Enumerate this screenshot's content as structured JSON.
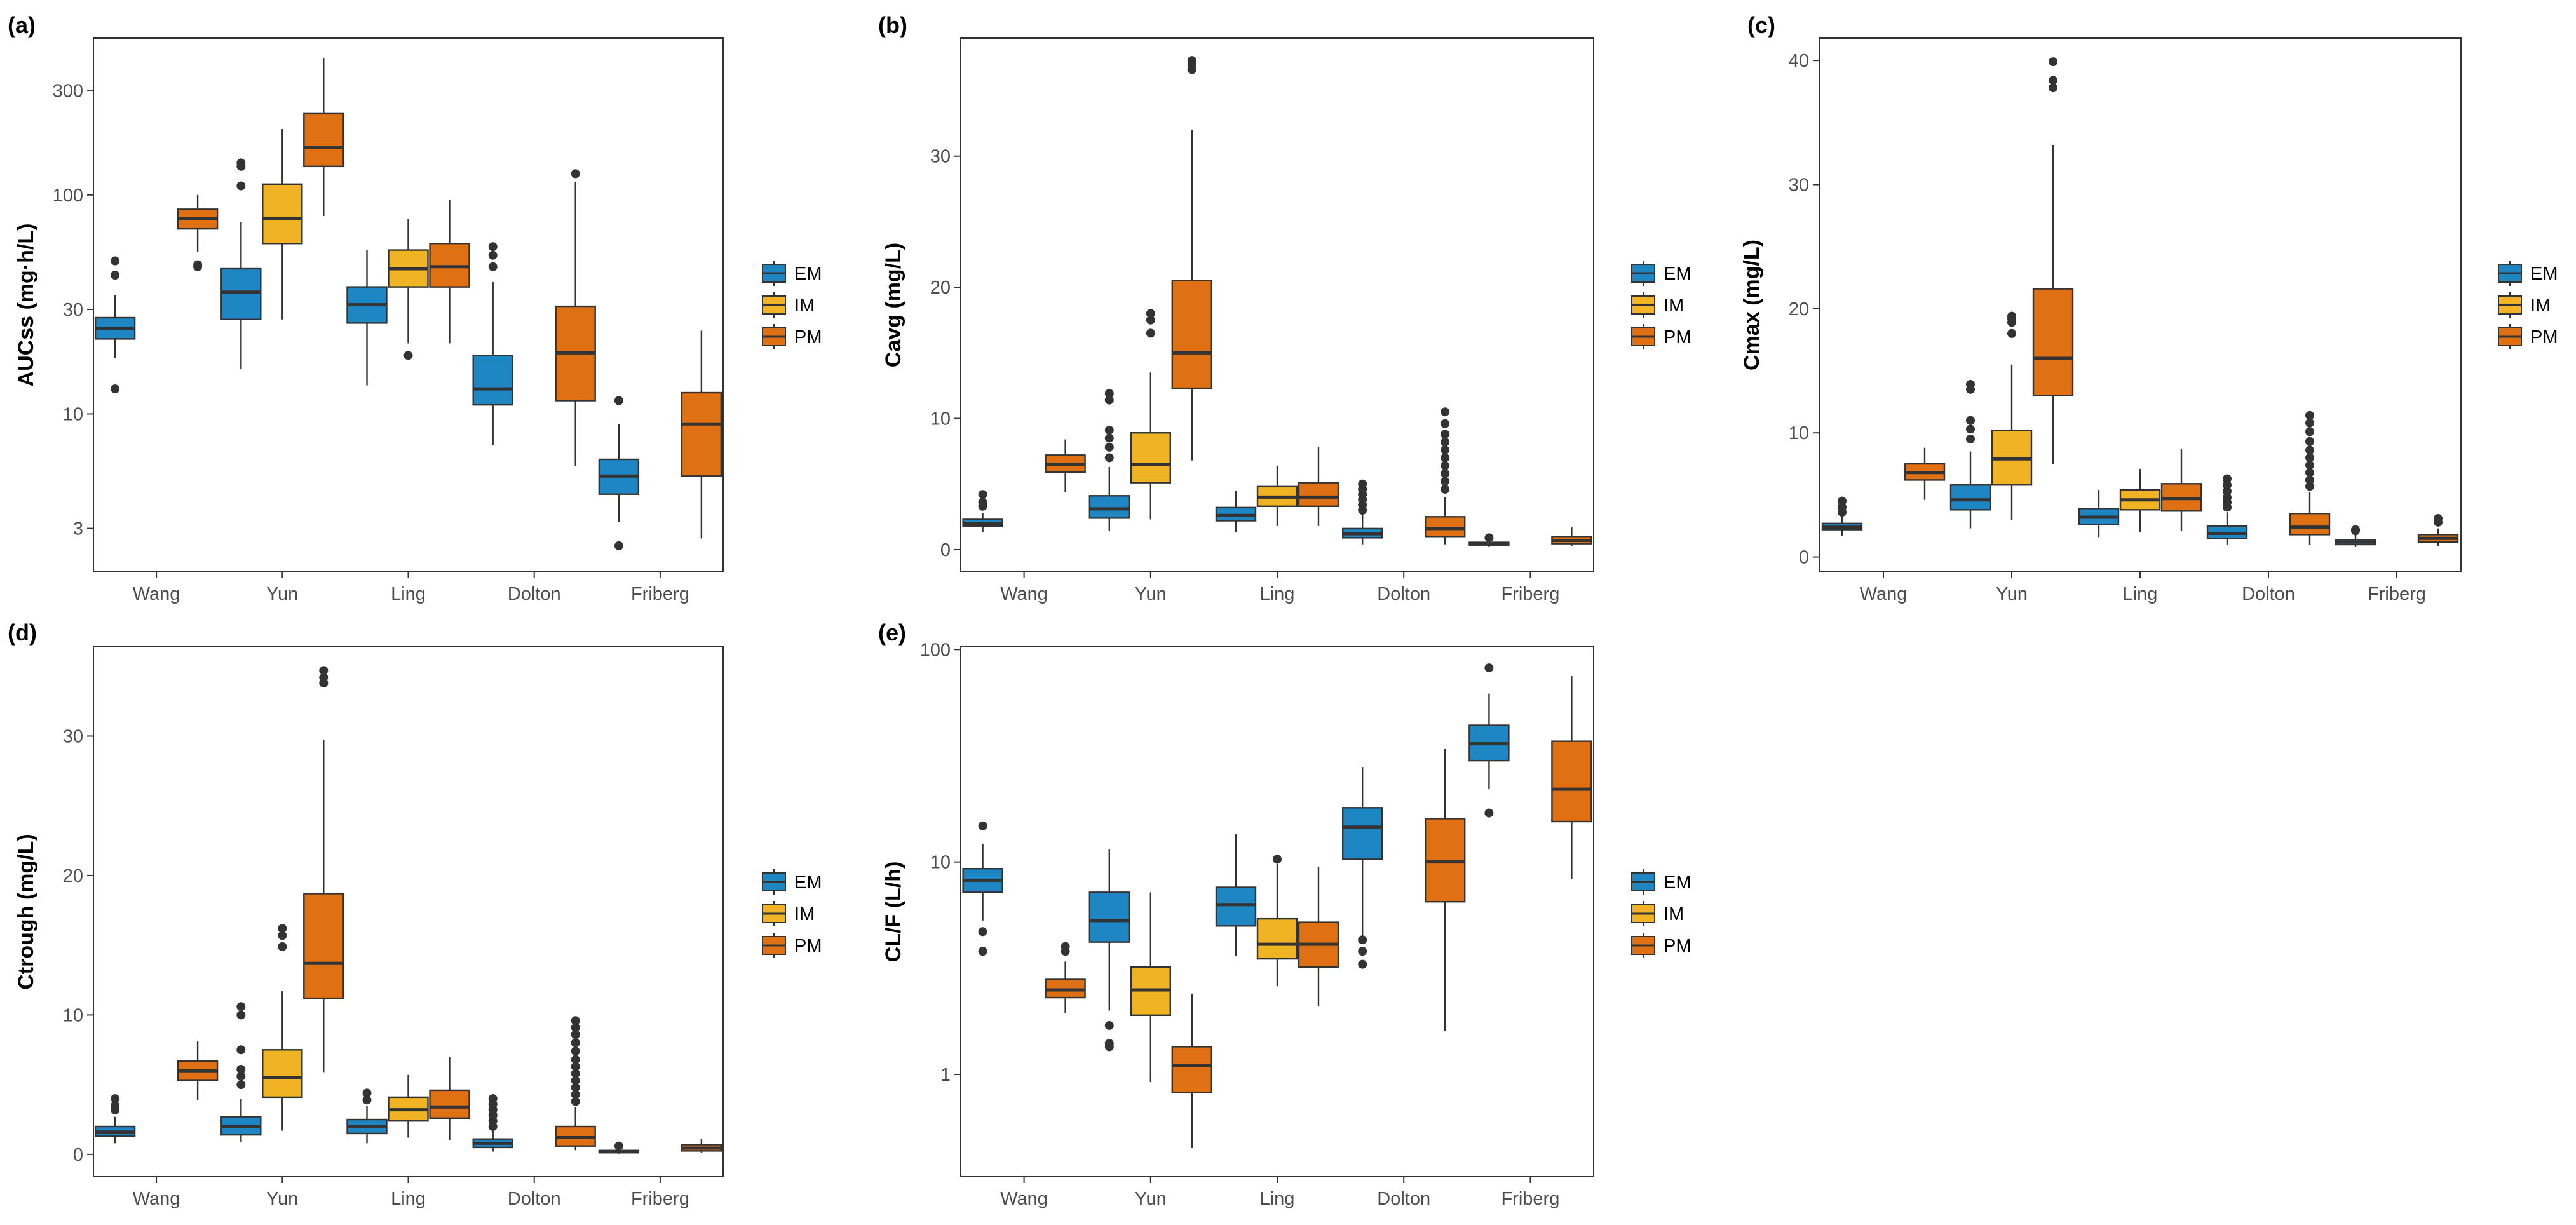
{
  "colors": {
    "EM": "#1f86c4",
    "IM": "#f0b323",
    "PM": "#e07014",
    "outlier": "#333333",
    "line": "#333333"
  },
  "legend": [
    "EM",
    "IM",
    "PM"
  ],
  "chart_data": [
    {
      "id": "a",
      "panel_label": "(a)",
      "type": "box",
      "ylabel": "AUCss (mg·h/L)",
      "scale": "log",
      "ylim": [
        1.9,
        520
      ],
      "yticks": [
        3,
        10,
        30,
        100,
        300
      ],
      "categories": [
        "Wang",
        "Yun",
        "Ling",
        "Dolton",
        "Friberg"
      ],
      "series": [
        {
          "name": "EM",
          "boxes": [
            {
              "min": 18,
              "q1": 22,
              "median": 24.5,
              "q3": 27.5,
              "max": 35,
              "outliers": [
                50,
                43,
                13
              ]
            },
            {
              "min": 16,
              "q1": 27,
              "median": 36,
              "q3": 46,
              "max": 75,
              "outliers": [
                110,
                135,
                140
              ]
            },
            {
              "min": 13.5,
              "q1": 26,
              "median": 31.5,
              "q3": 38,
              "max": 56,
              "outliers": []
            },
            {
              "min": 7.2,
              "q1": 11,
              "median": 13,
              "q3": 18.5,
              "max": 40,
              "outliers": [
                47,
                53,
                58
              ]
            },
            {
              "min": 3.2,
              "q1": 4.3,
              "median": 5.2,
              "q3": 6.2,
              "max": 9,
              "outliers": [
                11.5,
                2.5
              ]
            }
          ]
        },
        {
          "name": "IM",
          "boxes": [
            null,
            {
              "min": 27,
              "q1": 60,
              "median": 78,
              "q3": 112,
              "max": 200,
              "outliers": []
            },
            {
              "min": 21,
              "q1": 38,
              "median": 46,
              "q3": 56,
              "max": 78,
              "outliers": [
                18.5
              ]
            },
            null,
            null
          ]
        },
        {
          "name": "PM",
          "boxes": [
            {
              "min": 55,
              "q1": 70,
              "median": 78,
              "q3": 86,
              "max": 100,
              "outliers": [
                48,
                47
              ]
            },
            {
              "min": 80,
              "q1": 135,
              "median": 165,
              "q3": 235,
              "max": 420,
              "outliers": []
            },
            {
              "min": 21,
              "q1": 38,
              "median": 47,
              "q3": 60,
              "max": 95,
              "outliers": []
            },
            {
              "min": 5.8,
              "q1": 11.5,
              "median": 19,
              "q3": 31,
              "max": 115,
              "outliers": [
                125
              ]
            },
            {
              "min": 2.7,
              "q1": 5.2,
              "median": 9,
              "q3": 12.5,
              "max": 24,
              "outliers": []
            }
          ]
        }
      ]
    },
    {
      "id": "b",
      "panel_label": "(b)",
      "type": "box",
      "ylabel": "Cavg (mg/L)",
      "scale": "linear",
      "ylim": [
        -1.7,
        39
      ],
      "yticks": [
        0,
        10,
        20,
        30
      ],
      "categories": [
        "Wang",
        "Yun",
        "Ling",
        "Dolton",
        "Friberg"
      ],
      "series": [
        {
          "name": "EM",
          "boxes": [
            {
              "min": 1.3,
              "q1": 1.8,
              "median": 2.0,
              "q3": 2.3,
              "max": 2.8,
              "outliers": [
                3.3,
                3.6,
                4.2
              ]
            },
            {
              "min": 1.4,
              "q1": 2.4,
              "median": 3.1,
              "q3": 4.1,
              "max": 6.3,
              "outliers": [
                7,
                7.8,
                8.5,
                9.1,
                11.4,
                11.9
              ]
            },
            {
              "min": 1.3,
              "q1": 2.2,
              "median": 2.6,
              "q3": 3.2,
              "max": 4.5,
              "outliers": []
            },
            {
              "min": 0.4,
              "q1": 0.9,
              "median": 1.2,
              "q3": 1.6,
              "max": 2.7,
              "outliers": [
                3.0,
                3.4,
                3.8,
                4.2,
                4.6,
                5.0
              ]
            },
            {
              "min": 0.2,
              "q1": 0.35,
              "median": 0.42,
              "q3": 0.55,
              "max": 0.8,
              "outliers": [
                0.9
              ]
            }
          ]
        },
        {
          "name": "IM",
          "boxes": [
            null,
            {
              "min": 2.3,
              "q1": 5.1,
              "median": 6.5,
              "q3": 8.9,
              "max": 13.5,
              "outliers": [
                16.5,
                17.5,
                18.0
              ]
            },
            {
              "min": 1.8,
              "q1": 3.3,
              "median": 4.0,
              "q3": 4.8,
              "max": 6.4,
              "outliers": []
            },
            null,
            null
          ]
        },
        {
          "name": "PM",
          "boxes": [
            {
              "min": 4.4,
              "q1": 5.9,
              "median": 6.5,
              "q3": 7.2,
              "max": 8.4,
              "outliers": []
            },
            {
              "min": 6.8,
              "q1": 12.3,
              "median": 15.0,
              "q3": 20.5,
              "max": 32.0,
              "outliers": [
                36.6,
                37.0,
                37.3
              ]
            },
            {
              "min": 1.8,
              "q1": 3.3,
              "median": 4.0,
              "q3": 5.1,
              "max": 7.8,
              "outliers": []
            },
            {
              "min": 0.4,
              "q1": 1.0,
              "median": 1.6,
              "q3": 2.5,
              "max": 4.0,
              "outliers": [
                4.6,
                5.2,
                5.8,
                6.4,
                7.0,
                7.6,
                8.2,
                8.8,
                9.6,
                10.5
              ]
            },
            {
              "min": 0.25,
              "q1": 0.45,
              "median": 0.7,
              "q3": 1.0,
              "max": 1.7,
              "outliers": []
            }
          ]
        }
      ]
    },
    {
      "id": "c",
      "panel_label": "(c)",
      "type": "box",
      "ylabel": "Cmax (mg/L)",
      "scale": "linear",
      "ylim": [
        -1.2,
        41.8
      ],
      "yticks": [
        0,
        10,
        20,
        30,
        40
      ],
      "categories": [
        "Wang",
        "Yun",
        "Ling",
        "Dolton",
        "Friberg"
      ],
      "series": [
        {
          "name": "EM",
          "boxes": [
            {
              "min": 1.7,
              "q1": 2.2,
              "median": 2.4,
              "q3": 2.7,
              "max": 3.2,
              "outliers": [
                3.6,
                4.0,
                4.5
              ]
            },
            {
              "min": 2.3,
              "q1": 3.8,
              "median": 4.6,
              "q3": 5.8,
              "max": 8.5,
              "outliers": [
                9.5,
                10.3,
                11.0,
                13.5,
                13.9
              ]
            },
            {
              "min": 1.6,
              "q1": 2.6,
              "median": 3.2,
              "q3": 3.9,
              "max": 5.4,
              "outliers": []
            },
            {
              "min": 1.0,
              "q1": 1.5,
              "median": 1.9,
              "q3": 2.5,
              "max": 3.6,
              "outliers": [
                4.0,
                4.4,
                4.8,
                5.3,
                5.8,
                6.3
              ]
            },
            {
              "min": 0.8,
              "q1": 1.0,
              "median": 1.2,
              "q3": 1.4,
              "max": 1.8,
              "outliers": [
                2.1,
                2.2
              ]
            }
          ]
        },
        {
          "name": "IM",
          "boxes": [
            null,
            {
              "min": 3.0,
              "q1": 5.8,
              "median": 7.9,
              "q3": 10.2,
              "max": 15.5,
              "outliers": [
                18.0,
                18.9,
                19.2,
                19.4
              ]
            },
            {
              "min": 2.0,
              "q1": 3.8,
              "median": 4.6,
              "q3": 5.4,
              "max": 7.1,
              "outliers": []
            },
            null,
            null
          ]
        },
        {
          "name": "PM",
          "boxes": [
            {
              "min": 4.6,
              "q1": 6.2,
              "median": 6.8,
              "q3": 7.5,
              "max": 8.8,
              "outliers": []
            },
            {
              "min": 7.5,
              "q1": 13.0,
              "median": 16.0,
              "q3": 21.6,
              "max": 33.2,
              "outliers": [
                37.8,
                38.4,
                39.9
              ]
            },
            {
              "min": 2.1,
              "q1": 3.7,
              "median": 4.7,
              "q3": 5.9,
              "max": 8.7,
              "outliers": []
            },
            {
              "min": 1.0,
              "q1": 1.8,
              "median": 2.4,
              "q3": 3.5,
              "max": 5.2,
              "outliers": [
                5.7,
                6.2,
                6.8,
                7.4,
                8.0,
                8.6,
                9.3,
                10.1,
                10.8,
                11.4
              ]
            },
            {
              "min": 0.9,
              "q1": 1.2,
              "median": 1.5,
              "q3": 1.8,
              "max": 2.3,
              "outliers": [
                2.8,
                3.1
              ]
            }
          ]
        }
      ]
    },
    {
      "id": "d",
      "panel_label": "(d)",
      "type": "box",
      "ylabel": "Ctrough (mg/L)",
      "scale": "linear",
      "ylim": [
        -1.6,
        36.4
      ],
      "yticks": [
        0,
        10,
        20,
        30
      ],
      "categories": [
        "Wang",
        "Yun",
        "Ling",
        "Dolton",
        "Friberg"
      ],
      "series": [
        {
          "name": "EM",
          "boxes": [
            {
              "min": 0.8,
              "q1": 1.3,
              "median": 1.6,
              "q3": 2.0,
              "max": 2.7,
              "outliers": [
                3.2,
                3.5,
                4.0
              ]
            },
            {
              "min": 0.9,
              "q1": 1.4,
              "median": 2.0,
              "q3": 2.7,
              "max": 4.0,
              "outliers": [
                5.0,
                5.6,
                6.1,
                7.5,
                10.0,
                10.6
              ]
            },
            {
              "min": 0.8,
              "q1": 1.5,
              "median": 2.0,
              "q3": 2.5,
              "max": 3.5,
              "outliers": [
                3.9,
                4.4
              ]
            },
            {
              "min": 0.2,
              "q1": 0.5,
              "median": 0.8,
              "q3": 1.1,
              "max": 1.8,
              "outliers": [
                2.0,
                2.4,
                2.8,
                3.2,
                3.6,
                4.0
              ]
            },
            {
              "min": 0.05,
              "q1": 0.12,
              "median": 0.2,
              "q3": 0.28,
              "max": 0.4,
              "outliers": [
                0.6
              ]
            }
          ]
        },
        {
          "name": "IM",
          "boxes": [
            null,
            {
              "min": 1.7,
              "q1": 4.1,
              "median": 5.5,
              "q3": 7.5,
              "max": 11.7,
              "outliers": [
                14.9,
                15.7,
                16.2
              ]
            },
            {
              "min": 1.2,
              "q1": 2.4,
              "median": 3.2,
              "q3": 4.1,
              "max": 5.7,
              "outliers": []
            },
            null,
            null
          ]
        },
        {
          "name": "PM",
          "boxes": [
            {
              "min": 3.9,
              "q1": 5.3,
              "median": 6.0,
              "q3": 6.7,
              "max": 8.1,
              "outliers": []
            },
            {
              "min": 5.9,
              "q1": 11.2,
              "median": 13.7,
              "q3": 18.7,
              "max": 29.7,
              "outliers": [
                33.8,
                34.2,
                34.7
              ]
            },
            {
              "min": 1.0,
              "q1": 2.6,
              "median": 3.4,
              "q3": 4.6,
              "max": 7.0,
              "outliers": []
            },
            {
              "min": 0.3,
              "q1": 0.6,
              "median": 1.2,
              "q3": 2.0,
              "max": 3.4,
              "outliers": [
                3.8,
                4.3,
                4.8,
                5.3,
                5.8,
                6.3,
                6.8,
                7.4,
                8.0,
                8.6,
                9.1,
                9.6
              ]
            },
            {
              "min": 0.1,
              "q1": 0.25,
              "median": 0.45,
              "q3": 0.7,
              "max": 1.1,
              "outliers": []
            }
          ]
        }
      ]
    },
    {
      "id": "e",
      "panel_label": "(e)",
      "type": "box",
      "ylabel": "CL/F (L/h)",
      "scale": "log",
      "ylim": [
        0.33,
        103
      ],
      "yticks": [
        1,
        10,
        100
      ],
      "categories": [
        "Wang",
        "Yun",
        "Ling",
        "Dolton",
        "Friberg"
      ],
      "series": [
        {
          "name": "EM",
          "boxes": [
            {
              "min": 5.3,
              "q1": 7.2,
              "median": 8.2,
              "q3": 9.3,
              "max": 12.2,
              "outliers": [
                14.8,
                4.7,
                3.8
              ]
            },
            {
              "min": 2.0,
              "q1": 4.2,
              "median": 5.3,
              "q3": 7.2,
              "max": 11.5,
              "outliers": [
                1.7,
                1.4,
                1.35
              ]
            },
            {
              "min": 3.6,
              "q1": 5.0,
              "median": 6.3,
              "q3": 7.6,
              "max": 13.5,
              "outliers": []
            },
            {
              "min": 4.5,
              "q1": 10.3,
              "median": 14.6,
              "q3": 18.0,
              "max": 28.0,
              "outliers": [
                4.3,
                3.8,
                3.3
              ]
            },
            {
              "min": 22,
              "q1": 30,
              "median": 36,
              "q3": 44,
              "max": 62,
              "outliers": [
                82,
                17
              ]
            }
          ]
        },
        {
          "name": "IM",
          "boxes": [
            null,
            {
              "min": 0.92,
              "q1": 1.9,
              "median": 2.5,
              "q3": 3.2,
              "max": 7.2,
              "outliers": []
            },
            {
              "min": 2.6,
              "q1": 3.5,
              "median": 4.1,
              "q3": 5.4,
              "max": 9.8,
              "outliers": [
                10.3
              ]
            },
            null,
            null
          ]
        },
        {
          "name": "PM",
          "boxes": [
            {
              "min": 1.95,
              "q1": 2.3,
              "median": 2.5,
              "q3": 2.8,
              "max": 3.4,
              "outliers": [
                3.8,
                4.0
              ]
            },
            {
              "min": 0.45,
              "q1": 0.82,
              "median": 1.1,
              "q3": 1.35,
              "max": 2.4,
              "outliers": []
            },
            {
              "min": 2.1,
              "q1": 3.2,
              "median": 4.1,
              "q3": 5.2,
              "max": 9.5,
              "outliers": []
            },
            {
              "min": 1.6,
              "q1": 6.5,
              "median": 10.0,
              "q3": 16.0,
              "max": 34.0,
              "outliers": []
            },
            {
              "min": 8.3,
              "q1": 15.5,
              "median": 22.0,
              "q3": 37.0,
              "max": 75.0,
              "outliers": []
            }
          ]
        }
      ]
    }
  ]
}
